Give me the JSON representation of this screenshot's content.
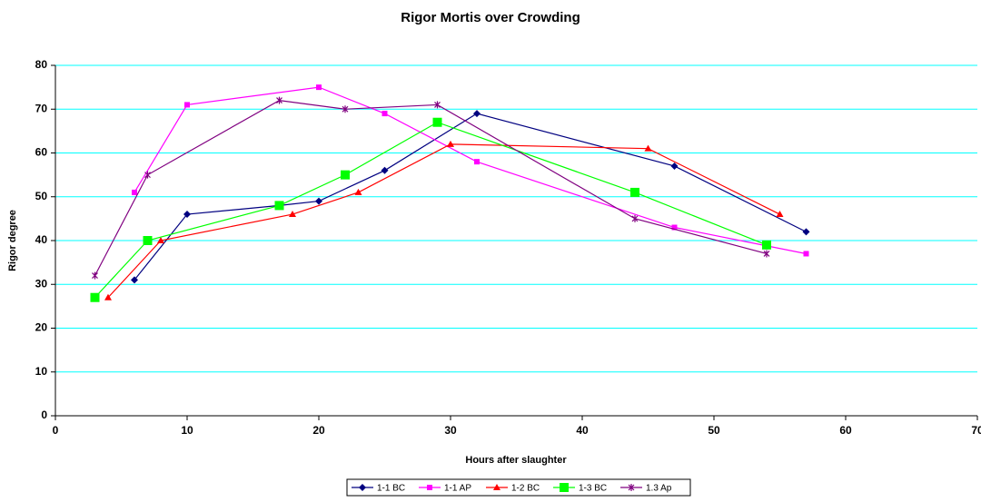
{
  "chart_data": {
    "type": "line",
    "title": "Rigor Mortis over Crowding",
    "x_label": "Hours after slaughter",
    "y_label": "Rigor degree",
    "xlim": [
      0,
      70
    ],
    "xticks": [
      0,
      10,
      20,
      30,
      40,
      50,
      60,
      70
    ],
    "ylim": [
      0,
      80
    ],
    "yticks": [
      0,
      10,
      20,
      30,
      40,
      50,
      60,
      70,
      80
    ],
    "grid": true,
    "legend": "bottom",
    "series": [
      {
        "name": "1-1 BC",
        "color": "#000080",
        "x": [
          6,
          10,
          17,
          20,
          25,
          32,
          47,
          57
        ],
        "values": [
          31,
          46,
          48,
          49,
          56,
          69,
          57,
          42
        ]
      },
      {
        "name": "1-1 AP",
        "color": "#ff00ff",
        "x": [
          6,
          10,
          20,
          25,
          32,
          47,
          57
        ],
        "values": [
          51,
          71,
          75,
          69,
          58,
          43,
          37
        ]
      },
      {
        "name": "1-2 BC",
        "color": "#ff0000",
        "x": [
          4,
          8,
          18,
          23,
          30,
          45,
          55
        ],
        "values": [
          27,
          40,
          46,
          51,
          62,
          61,
          46
        ]
      },
      {
        "name": "1-3 BC",
        "color": "#00ff00",
        "x": [
          3,
          7,
          17,
          22,
          29,
          44,
          54
        ],
        "values": [
          27,
          40,
          48,
          55,
          67,
          51,
          39
        ]
      },
      {
        "name": "1.3 Ap",
        "color": "#800080",
        "x": [
          3,
          7,
          17,
          22,
          29,
          44,
          54
        ],
        "values": [
          32,
          55,
          72,
          70,
          71,
          45,
          37
        ]
      }
    ]
  }
}
